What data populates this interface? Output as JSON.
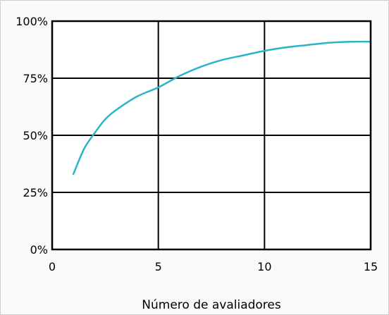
{
  "chart_data": {
    "type": "line",
    "title": "",
    "xlabel": "Número de avaliadores",
    "ylabel": "",
    "xlim": [
      0,
      15
    ],
    "ylim": [
      0,
      100
    ],
    "x_ticks": [
      "0",
      "5",
      "10",
      "15"
    ],
    "y_ticks": [
      "0%",
      "25%",
      "50%",
      "75%",
      "100%"
    ],
    "grid": true,
    "series": [
      {
        "color": "#29b5c8",
        "x": [
          1,
          1.5,
          2,
          2.5,
          3,
          4,
          5,
          6,
          7,
          8,
          9,
          10,
          11,
          12,
          13,
          14,
          15
        ],
        "y": [
          33,
          44,
          51,
          57,
          61,
          67,
          71,
          76,
          80,
          83,
          85,
          87,
          88.5,
          89.5,
          90.5,
          91,
          91
        ]
      }
    ]
  }
}
